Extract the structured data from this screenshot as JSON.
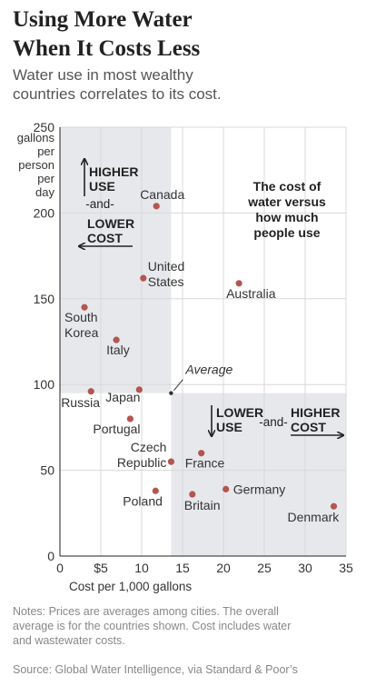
{
  "title_lines": [
    "Using More Water",
    "When It Costs Less"
  ],
  "subtitle_lines": [
    "Water use in most wealthy",
    "countries correlates to its cost."
  ],
  "chart_data": {
    "type": "scatter",
    "xlabel": "Cost per 1,000 gallons",
    "ylabel_lines": [
      "gallons",
      "per",
      "person",
      "per",
      "day"
    ],
    "xlim": [
      0,
      35
    ],
    "ylim": [
      0,
      250
    ],
    "xticks": [
      0,
      5,
      10,
      15,
      20,
      25,
      30,
      35
    ],
    "xtick_labels": [
      "0",
      "$5",
      "10",
      "15",
      "20",
      "25",
      "30",
      "35"
    ],
    "yticks": [
      0,
      50,
      100,
      150,
      200,
      250
    ],
    "ytick_labels": [
      "0",
      "50",
      "100",
      "150",
      "200",
      "250"
    ],
    "grid": true,
    "average": {
      "x": 13.6,
      "y": 95,
      "label": "Average"
    },
    "colors": {
      "point": "#b35650",
      "shade": "#e6e8ec",
      "grid": "#d8d8d8"
    },
    "points": [
      {
        "name": "Canada",
        "x": 11.8,
        "y": 204,
        "label_lines": [
          "Canada"
        ]
      },
      {
        "name": "United States",
        "x": 10.2,
        "y": 162,
        "label_lines": [
          "United",
          "States"
        ]
      },
      {
        "name": "Australia",
        "x": 21.9,
        "y": 159,
        "label_lines": [
          "Australia"
        ]
      },
      {
        "name": "South Korea",
        "x": 3.0,
        "y": 145,
        "label_lines": [
          "South",
          "Korea"
        ]
      },
      {
        "name": "Italy",
        "x": 6.9,
        "y": 126,
        "label_lines": [
          "Italy"
        ]
      },
      {
        "name": "Russia",
        "x": 3.8,
        "y": 96,
        "label_lines": [
          "Russia"
        ]
      },
      {
        "name": "Japan",
        "x": 9.7,
        "y": 97,
        "label_lines": [
          "Japan"
        ]
      },
      {
        "name": "Portugal",
        "x": 8.6,
        "y": 80,
        "label_lines": [
          "Portugal"
        ]
      },
      {
        "name": "Czech Republic",
        "x": 13.6,
        "y": 55,
        "label_lines": [
          "Czech",
          "Republic"
        ]
      },
      {
        "name": "France",
        "x": 17.3,
        "y": 60,
        "label_lines": [
          "France"
        ]
      },
      {
        "name": "Poland",
        "x": 11.7,
        "y": 38,
        "label_lines": [
          "Poland"
        ]
      },
      {
        "name": "Britain",
        "x": 16.2,
        "y": 36,
        "label_lines": [
          "Britain"
        ]
      },
      {
        "name": "Germany",
        "x": 20.3,
        "y": 39,
        "label_lines": [
          "Germany"
        ]
      },
      {
        "name": "Denmark",
        "x": 33.5,
        "y": 29,
        "label_lines": [
          "Denmark"
        ]
      }
    ],
    "annotations": {
      "top_left": {
        "line1": "HIGHER",
        "line2": "USE",
        "connector": "-and-",
        "line3": "LOWER",
        "line4": "COST"
      },
      "bottom_right": {
        "line1": "LOWER",
        "line2": "USE",
        "connector": "-and-",
        "line3": "HIGHER",
        "line4": "COST"
      },
      "callout_lines": [
        "The cost of",
        "water versus",
        "how much",
        "people use"
      ]
    }
  },
  "notes_lines": [
    "Notes: Prices are averages among cities. The overall",
    "average is for the countries shown. Cost includes water",
    "and wastewater costs."
  ],
  "source": "Source: Global Water Intelligence, via Standard & Poor’s"
}
